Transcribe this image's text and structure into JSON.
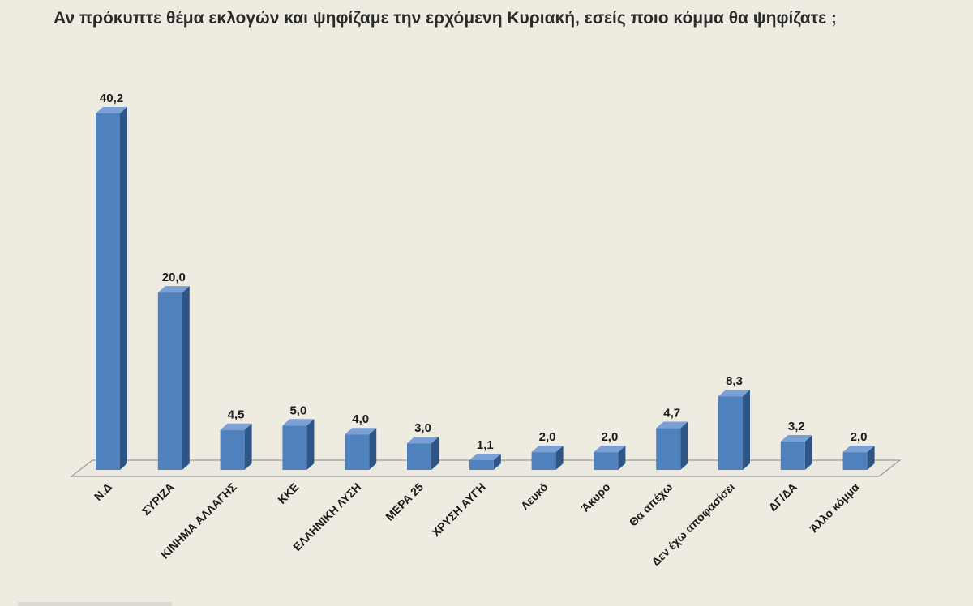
{
  "chart_data": {
    "type": "bar",
    "title": "Αν πρόκυπτε θέμα εκλογών και ψηφίζαμε την ερχόμενη Κυριακή, εσείς ποιο κόμμα θα ψηφίζατε ;",
    "categories": [
      "Ν.Δ",
      "ΣΥΡΙΖΑ",
      "ΚΙΝΗΜΑ ΑΛΛΑΓΗΣ",
      "ΚΚΕ",
      "ΕΛΛΗΝΙΚΗ ΛΥΣΗ",
      "ΜΕΡΑ 25",
      "ΧΡΥΣΗ ΑΥΓΗ",
      "Λευκό",
      "Άκυρο",
      "Θα απέχω",
      "Δεν έχω αποφασίσει",
      "ΔΓ/ΔΑ",
      "Άλλο κόμμα"
    ],
    "values": [
      40.2,
      20.0,
      4.5,
      5.0,
      4.0,
      3.0,
      1.1,
      2.0,
      2.0,
      4.7,
      8.3,
      3.2,
      2.0
    ],
    "value_labels": [
      "40,2",
      "20,0",
      "4,5",
      "5,0",
      "4,0",
      "3,0",
      "1,1",
      "2,0",
      "2,0",
      "4,7",
      "8,3",
      "3,2",
      "2,0"
    ],
    "ylim": [
      0,
      40.2
    ],
    "grid": false,
    "legend": "none",
    "three_d": true,
    "colors": {
      "bar_front": "#4f81bd",
      "bar_top": "#7aa0d6",
      "bar_side": "#2f5486",
      "floor": "#ebe8df",
      "floor_edge": "#9a9a9a"
    }
  }
}
